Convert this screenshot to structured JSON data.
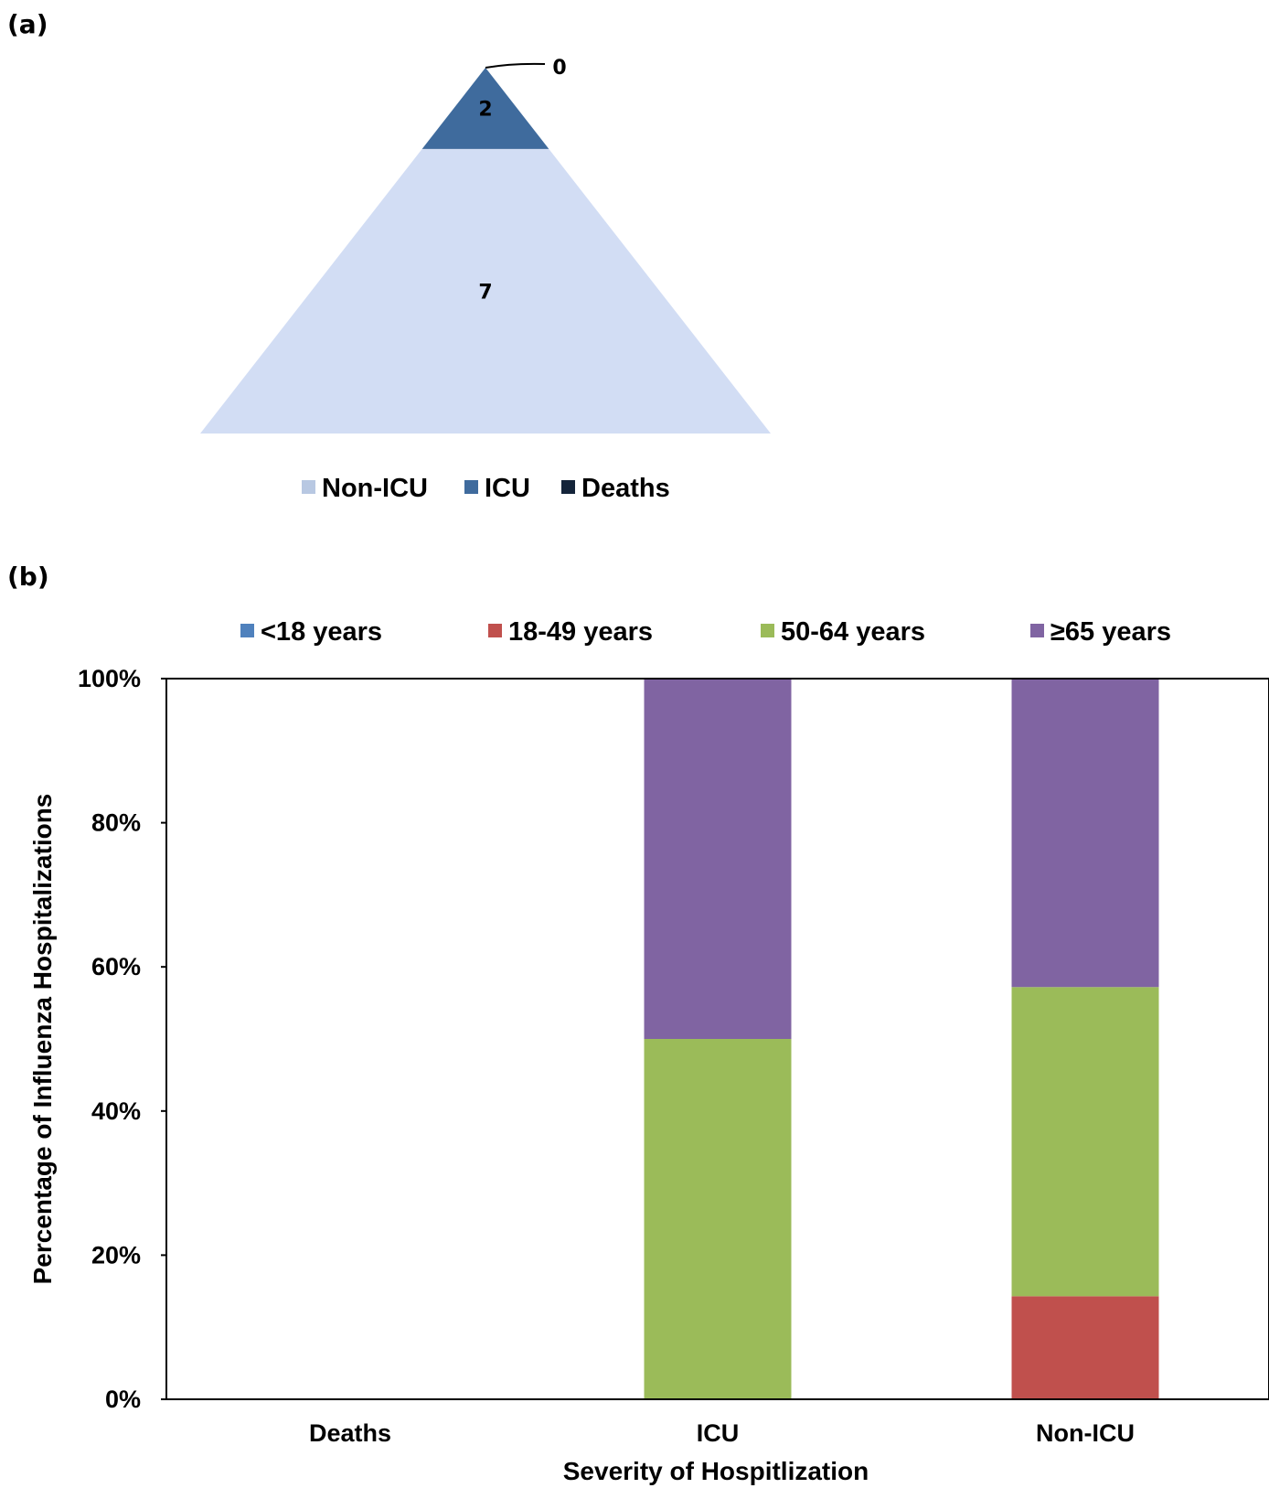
{
  "chart_data": [
    {
      "panel": "(a)",
      "type": "pyramid",
      "layers": [
        {
          "name": "Non-ICU",
          "value": 7,
          "color": "#d2ddf4"
        },
        {
          "name": "ICU",
          "value": 2,
          "color": "#3f6b9d"
        },
        {
          "name": "Deaths",
          "value": 0,
          "color": "#14243a"
        }
      ],
      "legend": {
        "placement": "bottom",
        "items": [
          "Non-ICU",
          "ICU",
          "Deaths"
        ],
        "colors": [
          "#b8c8e2",
          "#3f6b9d",
          "#14243a"
        ]
      }
    },
    {
      "panel": "(b)",
      "type": "bar",
      "stacked": true,
      "normalized": true,
      "categories": [
        "Deaths",
        "ICU",
        "Non-ICU"
      ],
      "series": [
        {
          "name": "<18 years",
          "color": "#4f81bd",
          "values": [
            0,
            0,
            0
          ]
        },
        {
          "name": "18-49 years",
          "color": "#c0504d",
          "values": [
            0,
            0,
            14.3
          ]
        },
        {
          "name": "50-64 years",
          "color": "#9bbb59",
          "values": [
            0,
            50,
            42.9
          ]
        },
        {
          "name": "≥65 years",
          "color": "#8064a2",
          "values": [
            0,
            50,
            42.8
          ]
        }
      ],
      "xlabel": "Severity of Hospitlization",
      "ylabel": "Percentage of Influenza Hospitalizations",
      "ylim": [
        0,
        100
      ],
      "yticks": [
        "0%",
        "20%",
        "40%",
        "60%",
        "80%",
        "100%"
      ],
      "legend": {
        "placement": "top"
      },
      "grid": false
    }
  ]
}
